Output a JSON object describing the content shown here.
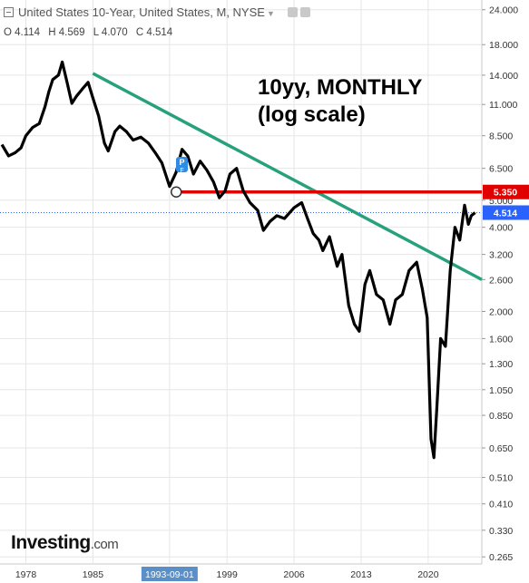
{
  "header": {
    "title": "United States 10-Year, United States, M, NYSE",
    "ohlc": {
      "o": "O 4.114",
      "h": "H 4.569",
      "l": "L 4.070",
      "c": "C 4.514"
    }
  },
  "annotation": {
    "line1": "10yy, MONTHLY",
    "line2": "(log scale)"
  },
  "brand": {
    "name": "Investing",
    "suffix": ".com"
  },
  "colors": {
    "price_line": "#000000",
    "trendline": "#26a17b",
    "resistance": "#e00000",
    "last_label_bg": "#2962ff",
    "time_highlight_bg": "#5b8fc7",
    "grid": "#e6e6e6"
  },
  "chart_data": {
    "type": "line",
    "scale": "log",
    "y_ticks": [
      "24.000",
      "18.000",
      "14.000",
      "11.000",
      "8.500",
      "6.500",
      "5.000",
      "4.000",
      "3.200",
      "2.600",
      "2.000",
      "1.600",
      "1.300",
      "1.050",
      "0.850",
      "0.650",
      "0.510",
      "0.410",
      "0.330",
      "0.265"
    ],
    "x_ticks": [
      "1978",
      "1985",
      "1993-09-01",
      "1999",
      "2006",
      "2013",
      "2020"
    ],
    "highlighted_x_label": "1993-09-01",
    "last_value_label": "4.514",
    "resistance_label": "5.350",
    "ylim": [
      0.25,
      26
    ],
    "xlim": [
      1975.3,
      2025.6
    ],
    "series": [
      {
        "x": [
          1975.5,
          1976.2,
          1976.9,
          1977.5,
          1978.0,
          1978.7,
          1979.4,
          1980.0,
          1980.4,
          1980.8,
          1981.4,
          1981.8,
          1982.3,
          1982.8,
          1983.3,
          1983.9,
          1984.5,
          1985.0,
          1985.6,
          1986.2,
          1986.6,
          1987.3,
          1987.8,
          1988.5,
          1989.2,
          1990.0,
          1990.8,
          1991.5,
          1992.2,
          1993.0,
          1993.7,
          1994.3,
          1994.9,
          1995.5,
          1996.2,
          1996.9,
          1997.6,
          1998.2,
          1998.8,
          1999.3,
          2000.0,
          2000.7,
          2001.4,
          2002.2,
          2002.8,
          2003.5,
          2004.2,
          2005.0,
          2006.0,
          2006.8,
          2007.4,
          2008.0,
          2008.6,
          2009.0,
          2009.7,
          2010.5,
          2011.0,
          2011.7,
          2012.3,
          2012.8,
          2013.4,
          2013.9,
          2014.6,
          2015.3,
          2016.0,
          2016.6,
          2017.3,
          2018.0,
          2018.8,
          2019.4,
          2019.9,
          2020.3,
          2020.6,
          2020.9,
          2021.3,
          2021.8,
          2022.3,
          2022.8,
          2023.3,
          2023.8,
          2024.2,
          2024.5,
          2024.9
        ],
        "y": [
          7.9,
          7.2,
          7.4,
          7.7,
          8.5,
          9.1,
          9.4,
          10.8,
          12.2,
          13.5,
          14.0,
          15.6,
          13.2,
          11.1,
          11.8,
          12.5,
          13.2,
          11.6,
          10.0,
          8.0,
          7.5,
          8.8,
          9.2,
          8.8,
          8.2,
          8.4,
          8.0,
          7.4,
          6.8,
          5.6,
          6.3,
          7.6,
          7.2,
          6.2,
          6.9,
          6.4,
          5.8,
          5.1,
          5.4,
          6.2,
          6.5,
          5.4,
          4.9,
          4.6,
          3.9,
          4.2,
          4.4,
          4.3,
          4.7,
          4.9,
          4.3,
          3.8,
          3.6,
          3.3,
          3.7,
          2.9,
          3.2,
          2.1,
          1.8,
          1.7,
          2.5,
          2.8,
          2.3,
          2.2,
          1.8,
          2.2,
          2.3,
          2.8,
          3.0,
          2.4,
          1.9,
          0.7,
          0.6,
          0.9,
          1.6,
          1.5,
          2.8,
          4.0,
          3.6,
          4.8,
          4.1,
          4.4,
          4.514
        ]
      }
    ],
    "trendline": {
      "x": [
        1985.0,
        2025.6
      ],
      "y": [
        14.2,
        2.6
      ]
    },
    "resistance_level": {
      "x": [
        1993.7,
        2025.6
      ],
      "y": [
        5.35,
        5.35
      ]
    },
    "anchor_point": {
      "x": 1993.7,
      "y": 5.35
    }
  }
}
